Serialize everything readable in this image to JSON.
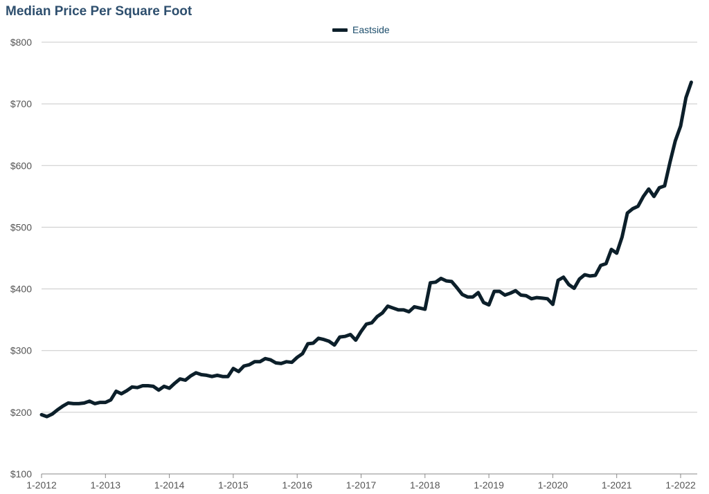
{
  "chart_data": {
    "type": "line",
    "title": "Median Price Per Square Foot",
    "xlabel": "",
    "ylabel": "",
    "ylim": [
      100,
      800
    ],
    "y_ticks": [
      "$100",
      "$200",
      "$300",
      "$400",
      "$500",
      "$600",
      "$700",
      "$800"
    ],
    "y_tick_values": [
      100,
      200,
      300,
      400,
      500,
      600,
      700,
      800
    ],
    "x_ticks": [
      "1-2012",
      "1-2013",
      "1-2014",
      "1-2015",
      "1-2016",
      "1-2017",
      "1-2018",
      "1-2019",
      "1-2020",
      "1-2021",
      "1-2022"
    ],
    "x_start": "1-2012",
    "grid": "horizontal",
    "legend_position": "top-center",
    "series": [
      {
        "name": "Eastside",
        "color": "#0c1f2a",
        "values": [
          196,
          193,
          197,
          204,
          210,
          215,
          214,
          214,
          215,
          218,
          214,
          216,
          216,
          220,
          234,
          230,
          235,
          241,
          240,
          243,
          243,
          242,
          236,
          242,
          239,
          247,
          254,
          252,
          259,
          264,
          261,
          260,
          258,
          260,
          258,
          258,
          271,
          266,
          275,
          277,
          282,
          282,
          287,
          285,
          280,
          279,
          282,
          281,
          289,
          295,
          311,
          312,
          320,
          318,
          315,
          309,
          322,
          323,
          326,
          317,
          331,
          343,
          345,
          355,
          361,
          372,
          369,
          366,
          366,
          363,
          371,
          369,
          367,
          410,
          411,
          417,
          413,
          412,
          402,
          391,
          387,
          387,
          394,
          378,
          374,
          396,
          396,
          390,
          393,
          397,
          390,
          389,
          384,
          386,
          385,
          384,
          375,
          414,
          419,
          407,
          401,
          416,
          423,
          421,
          422,
          438,
          441,
          464,
          458,
          484,
          523,
          530,
          534,
          550,
          562,
          550,
          564,
          567,
          605,
          640,
          664,
          710,
          735
        ]
      }
    ]
  }
}
